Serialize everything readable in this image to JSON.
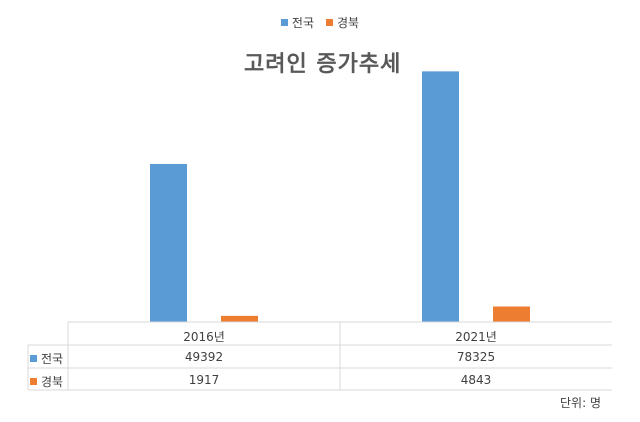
{
  "chart_data": {
    "type": "bar",
    "title": "고려인 증가추세",
    "categories": [
      "2016년",
      "2021년"
    ],
    "series": [
      {
        "name": "전국",
        "values": [
          49392,
          78325
        ],
        "color": "#5b9bd5"
      },
      {
        "name": "경북",
        "values": [
          1917,
          4843
        ],
        "color": "#ed7d31"
      }
    ],
    "ylim": [
      0,
      85000
    ],
    "legend_position": "top-center",
    "grid": false,
    "data_table": true,
    "unit_note": "단위: 명"
  }
}
